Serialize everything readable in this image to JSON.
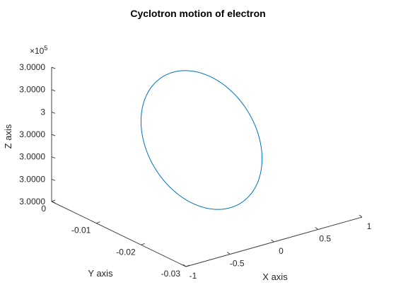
{
  "chart_data": {
    "type": "line",
    "title": "Cyclotron motion of electron",
    "xlabel": "X axis",
    "ylabel": "Y axis",
    "zlabel": "Z axis",
    "z_exponent_base": "×10",
    "z_exponent_power": "5",
    "x_ticks": [
      "-1",
      "-0.5",
      "0",
      "0.5",
      "1"
    ],
    "y_ticks": [
      "0",
      "-0.01",
      "-0.02",
      "-0.03"
    ],
    "z_ticks": [
      "3.0000",
      "3.0000",
      "3",
      "3.0000",
      "3.0000",
      "3.0000",
      "3.0000"
    ],
    "xlim": [
      -1,
      1
    ],
    "ylim": [
      -0.03,
      0
    ],
    "grid": false,
    "legend": "none",
    "series": [
      {
        "description": "circular orbit in the X-Y plane at near-constant Z",
        "x_range": [
          -1,
          1
        ],
        "y_range": [
          -0.03,
          0
        ],
        "z_value": 300000,
        "color": "#0072BD"
      }
    ]
  }
}
